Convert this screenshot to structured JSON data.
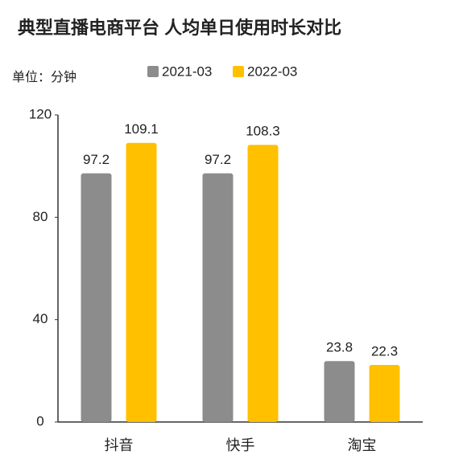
{
  "chart_data": {
    "type": "bar",
    "title": "典型直播电商平台 人均单日使用时长对比",
    "unit_label": "单位：分钟",
    "categories": [
      "抖音",
      "快手",
      "淘宝"
    ],
    "series": [
      {
        "name": "2021-03",
        "color": "#8c8c8c",
        "values": [
          97.2,
          97.2,
          23.8
        ]
      },
      {
        "name": "2022-03",
        "color": "#ffc000",
        "values": [
          109.1,
          108.3,
          22.3
        ]
      }
    ],
    "ylim": [
      0,
      120
    ],
    "yticks": [
      0,
      40,
      80,
      120
    ],
    "grid": false
  }
}
